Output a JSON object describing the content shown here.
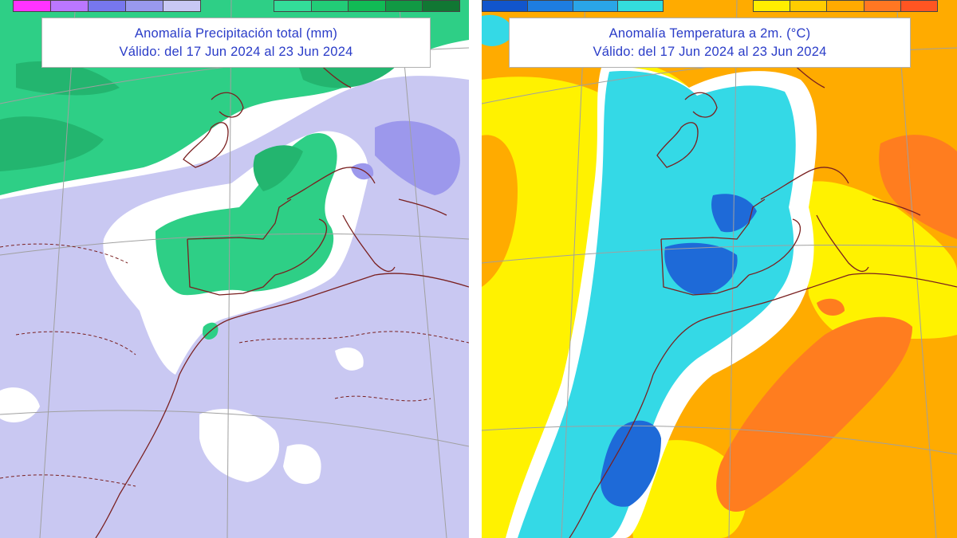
{
  "panels": [
    {
      "id": "precipitation",
      "title_line1": "Anomalía Precipitación total (mm)",
      "title_line2": "Válido: del 17 Jun 2024 al 23 Jun 2024",
      "colorbar_left": [
        "#ff33ff",
        "#bb77ff",
        "#7777ee",
        "#9999ee",
        "#c8c8f4"
      ],
      "colorbar_right": [
        "#33dd99",
        "#22cc77",
        "#11bb55",
        "#119944",
        "#117733"
      ]
    },
    {
      "id": "temperature",
      "title_line1": "Anomalía Temperatura a 2m. (°C)",
      "title_line2": "Válido: del 17 Jun 2024 al 23 Jun 2024",
      "colorbar_left": [
        "#1155cc",
        "#1e7de0",
        "#2aa5e8",
        "#33dddd"
      ],
      "colorbar_right": [
        "#ffee00",
        "#ffcc00",
        "#ffaa00",
        "#ff7722",
        "#ff5522"
      ]
    }
  ],
  "colors": {
    "precip_background": "#c9c8f2",
    "precip_neutral": "#ffffff",
    "precip_positive": "#2ecf86",
    "precip_positive_dark": "#23b56f",
    "precip_strong_negative": "#9c98ec",
    "temp_cyan": "#34d9e6",
    "temp_blue": "#1e6ad8",
    "temp_yellow": "#fff200",
    "temp_orange": "#ffab00",
    "temp_dark_orange": "#ff7d1f",
    "coastline": "#7a2020",
    "grid": "#a0a0a0",
    "title_text": "#2a3cc8"
  }
}
